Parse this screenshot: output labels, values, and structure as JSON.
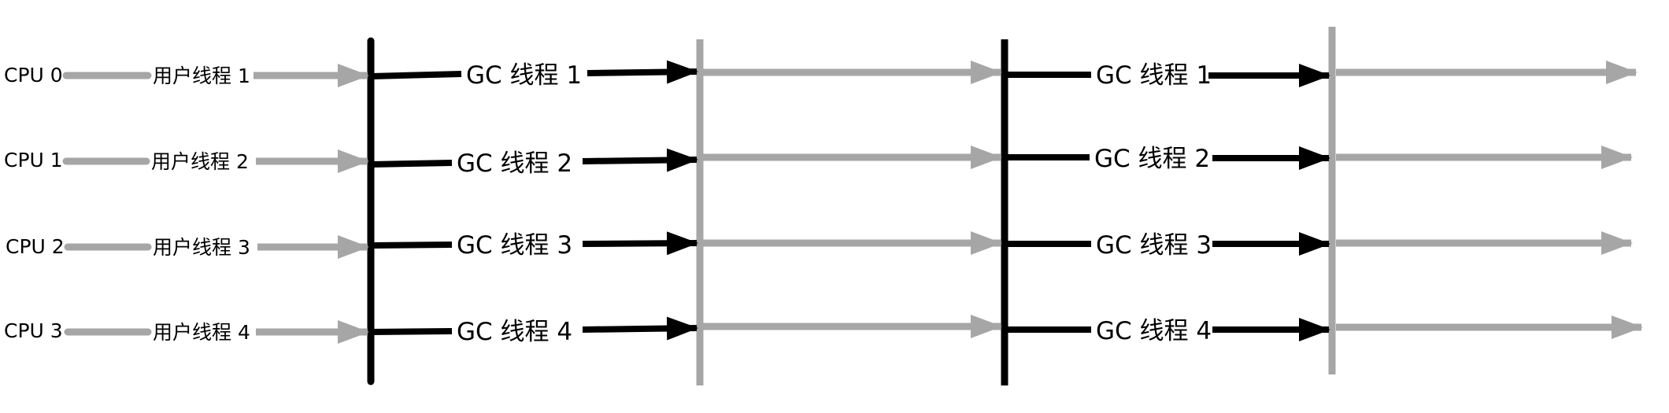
{
  "diagram": {
    "colors": {
      "black": "#000000",
      "gray": "#a6a6a6",
      "background": "#ffffff"
    },
    "rows": [
      {
        "cpu": "CPU 0",
        "user_thread": "用户线程 1",
        "gc_thread_a": "GC 线程  1",
        "gc_thread_b": "GC 线程 1"
      },
      {
        "cpu": "CPU 1",
        "user_thread": "用户线程 2",
        "gc_thread_a": "GC 线程  2",
        "gc_thread_b": "GC 线程 2"
      },
      {
        "cpu": "CPU 2",
        "user_thread": "用户线程 3",
        "gc_thread_a": "GC 线程  3",
        "gc_thread_b": "GC 线程 3"
      },
      {
        "cpu": "CPU 3",
        "user_thread": "用户线程 4",
        "gc_thread_a": "GC 线程  4",
        "gc_thread_b": "GC 线程 4"
      }
    ]
  }
}
